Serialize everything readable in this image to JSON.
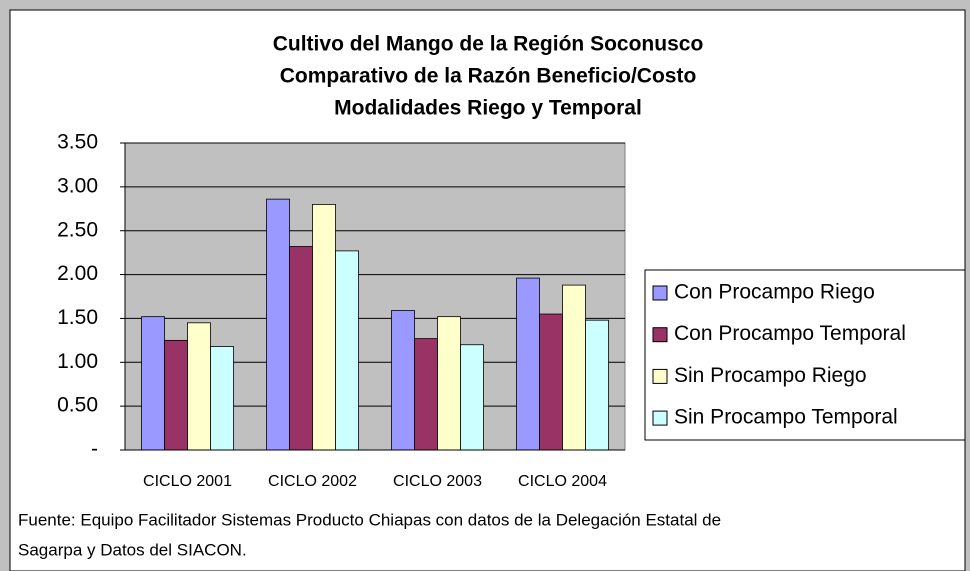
{
  "chart_data": {
    "type": "bar",
    "title": [
      "Cultivo del Mango de la Región Soconusco",
      "Comparativo de la Razón Beneficio/Costo",
      "Modalidades Riego y Temporal"
    ],
    "categories": [
      "CICLO 2001",
      "CICLO 2002",
      "CICLO 2003",
      "CICLO 2004"
    ],
    "series": [
      {
        "name": "Con Procampo Riego",
        "color": "#9999ff",
        "values": [
          1.52,
          2.86,
          1.59,
          1.96
        ]
      },
      {
        "name": "Con Procampo Temporal",
        "color": "#993366",
        "values": [
          1.25,
          2.32,
          1.27,
          1.55
        ]
      },
      {
        "name": "Sin Procampo Riego",
        "color": "#ffffcc",
        "values": [
          1.45,
          2.8,
          1.52,
          1.88
        ]
      },
      {
        "name": "Sin Procampo Temporal",
        "color": "#ccffff",
        "values": [
          1.18,
          2.27,
          1.2,
          1.48
        ]
      }
    ],
    "ylim": [
      0,
      3.5
    ],
    "yticks": [
      {
        "value": 0,
        "label": "-"
      },
      {
        "value": 0.5,
        "label": "0.50"
      },
      {
        "value": 1,
        "label": "1.00"
      },
      {
        "value": 1.5,
        "label": "1.50"
      },
      {
        "value": 2,
        "label": "2.00"
      },
      {
        "value": 2.5,
        "label": "2.50"
      },
      {
        "value": 3,
        "label": "3.00"
      },
      {
        "value": 3.5,
        "label": "3.50"
      }
    ],
    "grid": true,
    "legend": "right",
    "source": [
      "Fuente: Equipo Facilitador Sistemas Producto Chiapas con datos de la Delegación Estatal de",
      "Sagarpa y Datos del SIACON."
    ]
  }
}
